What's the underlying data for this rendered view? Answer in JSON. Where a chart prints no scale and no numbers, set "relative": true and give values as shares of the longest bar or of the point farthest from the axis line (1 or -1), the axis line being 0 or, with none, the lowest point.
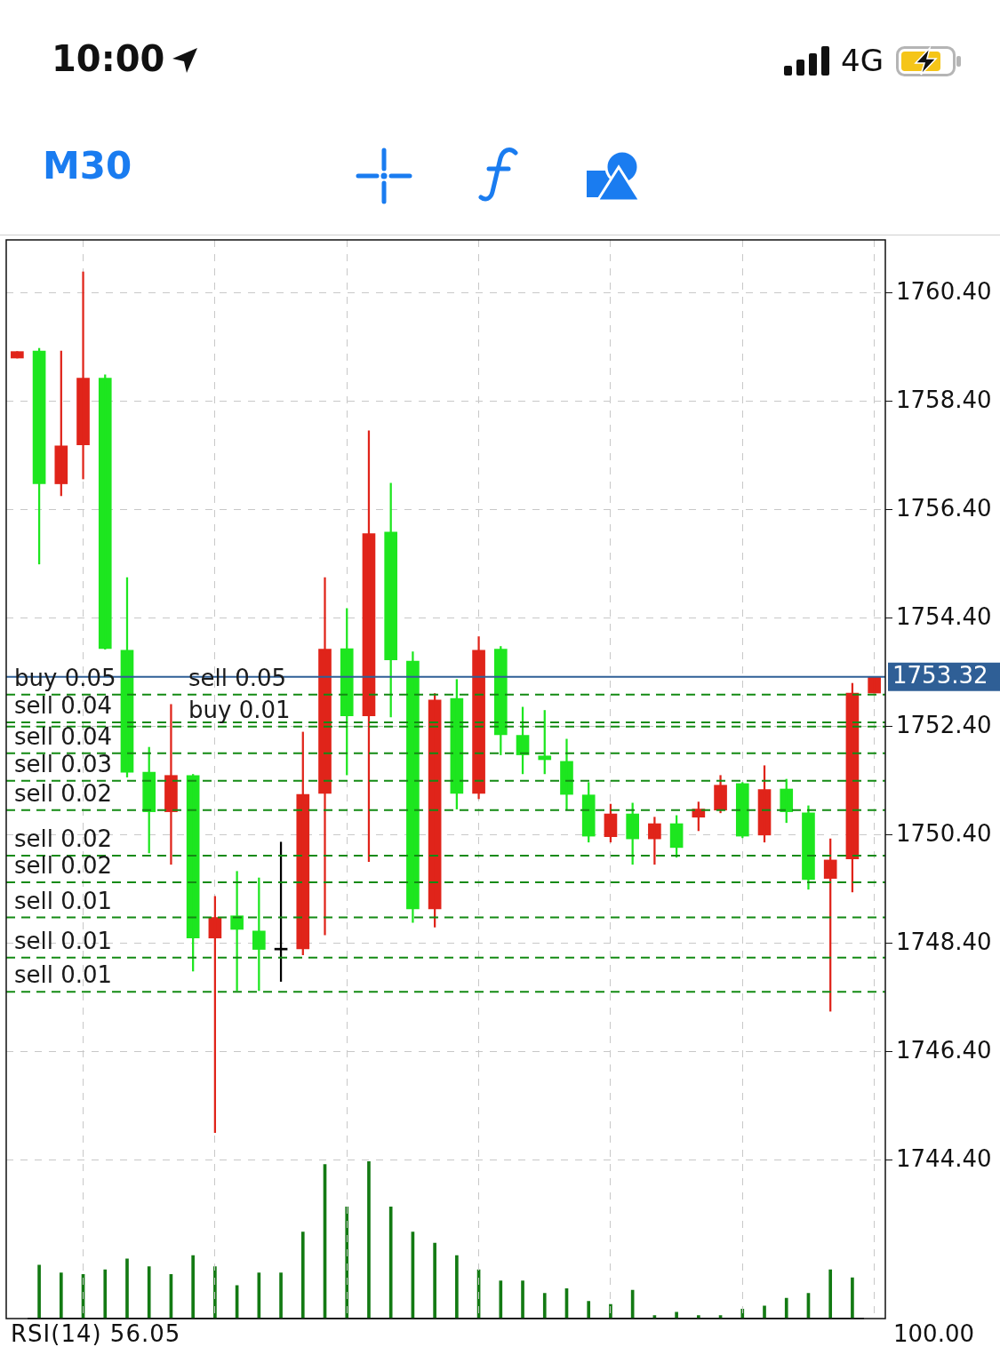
{
  "chart_data": [
    {
      "type": "candlestick",
      "annotations": [
        "10:00",
        "4G",
        "M30",
        {
          "text": "sell 0.05",
          "y": 1752.99
        }
      ],
      "categories": [
        null,
        null,
        null,
        null,
        null,
        null,
        null,
        null,
        null,
        null,
        null,
        null,
        null,
        null,
        null,
        null,
        null,
        null,
        null,
        null,
        null,
        null,
        null,
        null,
        null,
        null,
        null,
        null,
        null,
        null,
        null,
        null,
        null,
        null,
        null,
        null,
        null,
        null,
        null,
        null
      ],
      "ohlc": [
        [
          1759.2,
          1759.32,
          1759.2,
          1759.32
        ],
        [
          1759.33,
          1759.38,
          1755.4,
          1756.88
        ],
        [
          1756.88,
          1759.33,
          1756.66,
          1757.58
        ],
        [
          1757.6,
          1760.79,
          1756.97,
          1758.83
        ],
        [
          1758.83,
          1758.89,
          1753.83,
          1753.84
        ],
        [
          1753.81,
          1755.15,
          1751.47,
          1751.56
        ],
        [
          1751.56,
          1752.02,
          1750.07,
          1750.83
        ],
        [
          1750.83,
          1752.81,
          1749.86,
          1751.5
        ],
        [
          1751.5,
          1751.52,
          1747.89,
          1748.5
        ],
        [
          1748.5,
          1749.27,
          1744.91,
          1748.88
        ],
        [
          1748.91,
          1749.73,
          1747.53,
          1748.66
        ],
        [
          1748.63,
          1749.61,
          1747.53,
          1748.29
        ],
        [
          1748.28,
          1750.27,
          1747.7,
          1748.28
        ],
        [
          1748.3,
          1752.3,
          1748.19,
          1751.15
        ],
        [
          1751.17,
          1755.15,
          1748.56,
          1753.83
        ],
        [
          1753.84,
          1754.58,
          1751.51,
          1752.6
        ],
        [
          1752.6,
          1757.86,
          1749.91,
          1755.96
        ],
        [
          1755.99,
          1756.89,
          1752.58,
          1753.63
        ],
        [
          1753.61,
          1753.78,
          1748.79,
          1749.04
        ],
        [
          1749.04,
          1753.01,
          1748.7,
          1752.89
        ],
        [
          1752.92,
          1753.27,
          1750.88,
          1751.17
        ],
        [
          1751.17,
          1754.06,
          1751.07,
          1753.81
        ],
        [
          1753.83,
          1753.88,
          1751.88,
          1752.25
        ],
        [
          1752.24,
          1752.76,
          1751.53,
          1751.88
        ],
        [
          1751.86,
          1752.7,
          1751.53,
          1751.79
        ],
        [
          1751.76,
          1752.17,
          1750.86,
          1751.15
        ],
        [
          1751.14,
          1751.37,
          1750.27,
          1750.38
        ],
        [
          1750.37,
          1750.97,
          1750.27,
          1750.79
        ],
        [
          1750.79,
          1750.99,
          1749.86,
          1750.33
        ],
        [
          1750.33,
          1750.73,
          1749.86,
          1750.61
        ],
        [
          1750.61,
          1750.76,
          1749.99,
          1750.17
        ],
        [
          1750.73,
          1751.01,
          1750.48,
          1750.88
        ],
        [
          1750.86,
          1751.5,
          1750.81,
          1751.32
        ],
        [
          1751.35,
          1751.37,
          1750.35,
          1750.38
        ],
        [
          1750.4,
          1751.68,
          1750.27,
          1751.24
        ],
        [
          1751.25,
          1751.43,
          1750.63,
          1750.83
        ],
        [
          1750.81,
          1750.94,
          1749.4,
          1749.58
        ],
        [
          1749.6,
          1750.33,
          1747.15,
          1749.94
        ],
        [
          1749.96,
          1753.2,
          1749.35,
          1753.02
        ],
        [
          1753.02,
          1753.32,
          1753.02,
          1753.32
        ]
      ],
      "colors": [
        "#e0241a",
        "#1de61f",
        "#e0241a",
        "#e0241a",
        "#1de61f",
        "#1de61f",
        "#1de61f",
        "#e0241a",
        "#1de61f",
        "#e0241a",
        "#1de61f",
        "#1de61f",
        "#000000",
        "#e0241a",
        "#e0241a",
        "#1de61f",
        "#e0241a",
        "#1de61f",
        "#1de61f",
        "#e0241a",
        "#1de61f",
        "#e0241a",
        "#1de61f",
        "#1de61f",
        "#1de61f",
        "#1de61f",
        "#1de61f",
        "#e0241a",
        "#1de61f",
        "#e0241a",
        "#1de61f",
        "#e0241a",
        "#e0241a",
        "#1de61f",
        "#e0241a",
        "#1de61f",
        "#1de61f",
        "#e0241a",
        "#e0241a",
        "#e0241a"
      ],
      "ylim": [
        1741.48,
        1761.38
      ],
      "yticks": [
        {
          "value": 1744.4,
          "label": "1744.40"
        },
        {
          "value": 1746.4,
          "label": "1746.40"
        },
        {
          "value": 1748.4,
          "label": "1748.40"
        },
        {
          "value": 1750.4,
          "label": "1750.40"
        },
        {
          "value": 1752.4,
          "label": "1752.40"
        },
        {
          "value": 1754.4,
          "label": "1754.40"
        },
        {
          "value": 1756.4,
          "label": "1756.40"
        },
        {
          "value": 1758.4,
          "label": "1758.40"
        },
        {
          "value": 1760.4,
          "label": "1760.40"
        }
      ],
      "tick_labels": "y",
      "grid": true,
      "legend": false,
      "ref_lines": [
        {
          "axis": "y",
          "value": 1753.32,
          "label": "1753.32",
          "color": "#2f5f96",
          "line_style": "solid"
        },
        {
          "axis": "y",
          "value": 1752.99,
          "label": "buy 0.05",
          "color": "#138a13",
          "line_style": "dashed"
        },
        {
          "axis": "y",
          "value": 1752.48,
          "label": "sell 0.04",
          "color": "#138a13",
          "line_style": "dashed"
        },
        {
          "axis": "y",
          "value": 1752.4,
          "label": "buy 0.01",
          "color": "#138a13",
          "line_style": "dashed"
        },
        {
          "axis": "y",
          "value": 1751.91,
          "label": "sell 0.04",
          "color": "#138a13",
          "line_style": "dashed"
        },
        {
          "axis": "y",
          "value": 1751.4,
          "label": "sell 0.03",
          "color": "#138a13",
          "line_style": "dashed"
        },
        {
          "axis": "y",
          "value": 1750.86,
          "label": "sell 0.02",
          "color": "#138a13",
          "line_style": "dashed"
        },
        {
          "axis": "y",
          "value": 1750.02,
          "label": "sell 0.02",
          "color": "#138a13",
          "line_style": "dashed"
        },
        {
          "axis": "y",
          "value": 1749.53,
          "label": "sell 0.02",
          "color": "#138a13",
          "line_style": "dashed"
        },
        {
          "axis": "y",
          "value": 1748.88,
          "label": "sell 0.01",
          "color": "#138a13",
          "line_style": "dashed"
        },
        {
          "axis": "y",
          "value": 1748.14,
          "label": "sell 0.01",
          "color": "#138a13",
          "line_style": "dashed"
        },
        {
          "axis": "y",
          "value": 1747.51,
          "label": "sell 0.01",
          "color": "#138a13",
          "line_style": "dashed"
        }
      ]
    },
    {
      "type": "bar",
      "relative": true,
      "legend": false,
      "categories": [
        null,
        null,
        null,
        null,
        null,
        null,
        null,
        null,
        null,
        null,
        null,
        null,
        null,
        null,
        null,
        null,
        null,
        null,
        null,
        null,
        null,
        null,
        null,
        null,
        null,
        null,
        null,
        null,
        null,
        null,
        null,
        null,
        null,
        null,
        null,
        null,
        null,
        null
      ],
      "color": "#137a13",
      "values": [
        0.34,
        0.29,
        0.28,
        0.31,
        0.38,
        0.33,
        0.28,
        0.4,
        0.33,
        0.21,
        0.29,
        0.29,
        0.55,
        0.98,
        0.71,
        1,
        0.71,
        0.55,
        0.48,
        0.4,
        0.31,
        0.24,
        0.24,
        0.16,
        0.19,
        0.11,
        0.09,
        0.18,
        0.02,
        0.04,
        0.02,
        0.02,
        0.06,
        0.08,
        0.13,
        0.16,
        0.31,
        0.26
      ]
    },
    {
      "type": "other",
      "title": "RSI(14) 56.05",
      "annotations": [
        "100.00"
      ]
    }
  ]
}
